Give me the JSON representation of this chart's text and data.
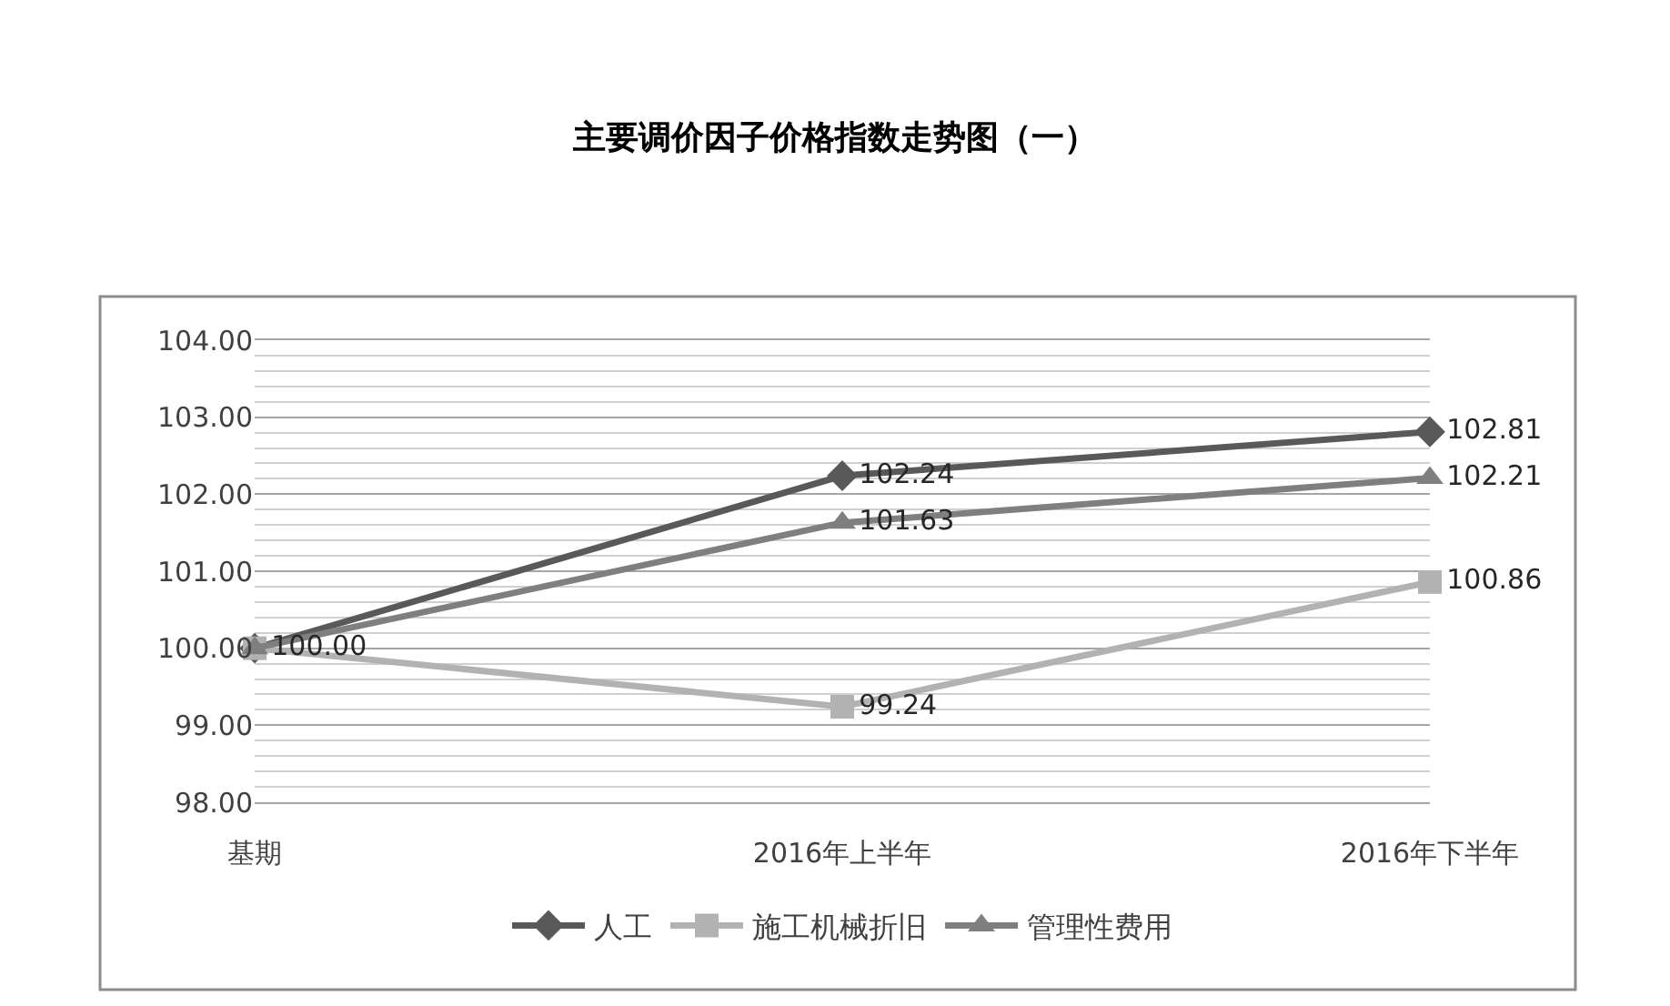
{
  "chart_data": {
    "type": "line",
    "title": "主要调价因子价格指数走势图（一）",
    "categories": [
      "基期",
      "2016年上半年",
      "2016年下半年"
    ],
    "series": [
      {
        "name": "人工",
        "color": "#595959",
        "marker": "diamond",
        "values": [
          100.0,
          102.24,
          102.81
        ],
        "value_labels": [
          null,
          "102.24",
          "102.81"
        ]
      },
      {
        "name": "施工机械折旧",
        "color": "#b2b2b2",
        "marker": "square",
        "values": [
          100.0,
          99.24,
          100.86
        ],
        "value_labels": [
          null,
          "99.24",
          "100.86"
        ]
      },
      {
        "name": "管理性费用",
        "color": "#7f7f7f",
        "marker": "triangle",
        "values": [
          100.0,
          101.63,
          102.21
        ],
        "value_labels": [
          "100.00",
          "101.63",
          "102.21"
        ]
      }
    ],
    "ylim": [
      98,
      104
    ],
    "yticks": [
      {
        "value": 98,
        "label": "98.00"
      },
      {
        "value": 98.2,
        "label": null
      },
      {
        "value": 98.4,
        "label": null
      },
      {
        "value": 98.6,
        "label": null
      },
      {
        "value": 98.8,
        "label": null
      },
      {
        "value": 99,
        "label": "99.00"
      },
      {
        "value": 99.2,
        "label": null
      },
      {
        "value": 99.4,
        "label": null
      },
      {
        "value": 99.6,
        "label": null
      },
      {
        "value": 99.8,
        "label": null
      },
      {
        "value": 100,
        "label": "100.00"
      },
      {
        "value": 100.2,
        "label": null
      },
      {
        "value": 100.4,
        "label": null
      },
      {
        "value": 100.6,
        "label": null
      },
      {
        "value": 100.8,
        "label": null
      },
      {
        "value": 101,
        "label": "101.00"
      },
      {
        "value": 101.2,
        "label": null
      },
      {
        "value": 101.4,
        "label": null
      },
      {
        "value": 101.6,
        "label": null
      },
      {
        "value": 101.8,
        "label": null
      },
      {
        "value": 102,
        "label": "102.00"
      },
      {
        "value": 102.2,
        "label": null
      },
      {
        "value": 102.4,
        "label": null
      },
      {
        "value": 102.6,
        "label": null
      },
      {
        "value": 102.8,
        "label": null
      },
      {
        "value": 103,
        "label": "103.00"
      },
      {
        "value": 103.2,
        "label": null
      },
      {
        "value": 103.4,
        "label": null
      },
      {
        "value": 103.6,
        "label": null
      },
      {
        "value": 103.8,
        "label": null
      },
      {
        "value": 104,
        "label": "104.00"
      }
    ],
    "grid": "y",
    "legend": "bottom",
    "line_style": "solid"
  }
}
